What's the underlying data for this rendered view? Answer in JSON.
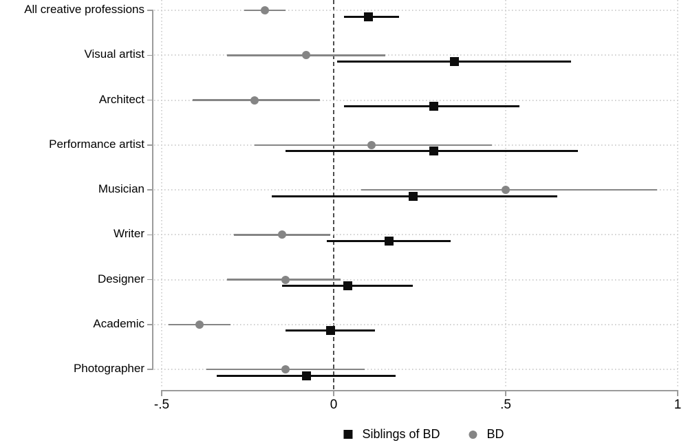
{
  "chart_data": {
    "type": "scatter",
    "subtype": "forest-plot-with-error-bars",
    "title": "",
    "categories": [
      "All creative professions",
      "Visual artist",
      "Architect",
      "Performance artist",
      "Musician",
      "Writer",
      "Designer",
      "Academic",
      "Photographer"
    ],
    "series": [
      {
        "name": "Siblings of BD",
        "marker": "square",
        "color": "#0d0d0d",
        "values": [
          0.1,
          0.35,
          0.29,
          0.29,
          0.23,
          0.16,
          0.04,
          -0.01,
          -0.08
        ],
        "ci_low": [
          0.03,
          0.01,
          0.03,
          -0.14,
          -0.18,
          -0.02,
          -0.15,
          -0.14,
          -0.34
        ],
        "ci_high": [
          0.19,
          0.69,
          0.54,
          0.71,
          0.65,
          0.34,
          0.23,
          0.12,
          0.18
        ]
      },
      {
        "name": "BD",
        "marker": "circle",
        "color": "#858585",
        "values": [
          -0.2,
          -0.08,
          -0.23,
          0.11,
          0.5,
          -0.15,
          -0.14,
          -0.39,
          -0.14
        ],
        "ci_low": [
          -0.26,
          -0.31,
          -0.41,
          -0.23,
          0.08,
          -0.29,
          -0.31,
          -0.48,
          -0.37
        ],
        "ci_high": [
          -0.14,
          0.15,
          -0.04,
          0.46,
          0.94,
          -0.01,
          0.02,
          -0.3,
          0.09
        ]
      }
    ],
    "x_axis": {
      "range": [
        -0.5,
        1.0
      ],
      "ticks": [
        -0.5,
        0,
        0.5,
        1
      ],
      "tick_labels": [
        "-.5",
        "0",
        ".5",
        "1"
      ]
    },
    "reference_line": 0,
    "grid": {
      "horizontal": "dotted line per category row",
      "vertical_dotted_at": [
        -0.5,
        0.5,
        1
      ],
      "vertical_dashed_at": 0
    },
    "legend": {
      "position": "bottom-center",
      "entries": [
        "Siblings of BD",
        "BD"
      ]
    },
    "colors": {
      "siblings_series": "#0d0d0d",
      "bd_series": "#858585",
      "gridline": "#cfcfcf",
      "zero_line": "#4d4d4d",
      "axis": "#9b9b9b",
      "text": "#000000",
      "background": "#ffffff"
    }
  }
}
